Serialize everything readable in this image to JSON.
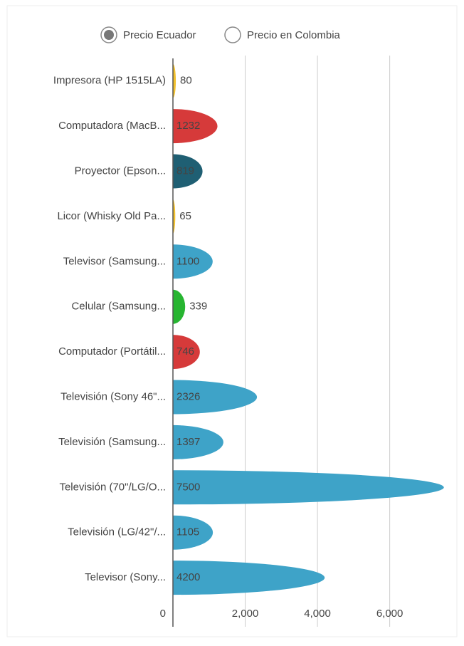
{
  "chart_data": {
    "type": "bar",
    "orientation": "horizontal",
    "categories": [
      "Impresora (HP 1515LA)",
      "Computadora (MacB...",
      "Proyector (Epson...",
      "Licor (Whisky Old Pa...",
      "Televisor (Samsung...",
      "Celular (Samsung...",
      "Computador (Portátil...",
      "Televisión (Sony 46\"...",
      "Televisión (Samsung...",
      "Televisión (70\"/LG/O...",
      "Televisión (LG/42\"/...",
      "Televisor (Sony..."
    ],
    "series": [
      {
        "name": "Precio Ecuador",
        "values": [
          80,
          1232,
          819,
          65,
          1100,
          339,
          746,
          2326,
          1397,
          7500,
          1105,
          4200
        ],
        "colors": [
          "#f2c12e",
          "#d63a3a",
          "#1f5f73",
          "#f2c12e",
          "#3ea3c8",
          "#27b531",
          "#d63a3a",
          "#3ea3c8",
          "#3ea3c8",
          "#3ea3c8",
          "#3ea3c8",
          "#3ea3c8"
        ]
      }
    ],
    "legend": [
      {
        "name": "Precio Ecuador",
        "selected": true
      },
      {
        "name": "Precio en Colombia",
        "selected": false
      }
    ],
    "xlim": [
      0,
      7800
    ],
    "xticks": [
      0,
      {
        "value": 2000,
        "label": "2,000"
      },
      {
        "value": 4000,
        "label": "4,000"
      },
      {
        "value": 6000,
        "label": "6,000"
      }
    ],
    "grid": true
  }
}
